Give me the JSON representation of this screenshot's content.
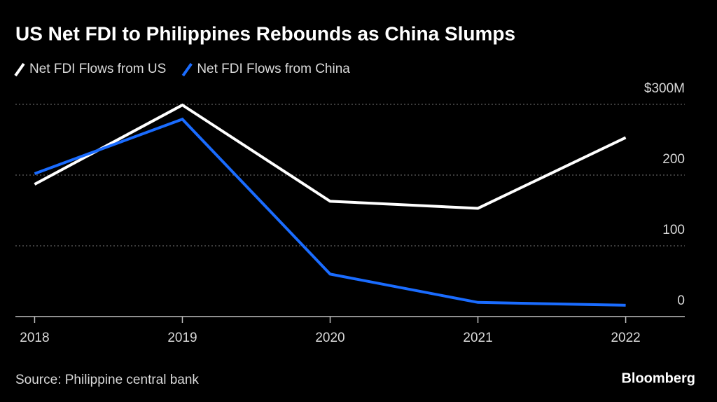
{
  "chart_data": {
    "type": "line",
    "title": "US Net FDI to Philippines Rebounds as China Slumps",
    "x": [
      2018,
      2019,
      2020,
      2021,
      2022
    ],
    "xlim": [
      2017.87,
      2022.4
    ],
    "xticks": [
      2018,
      2019,
      2020,
      2021,
      2022
    ],
    "ylim": [
      0,
      300
    ],
    "yticks": [
      0,
      100,
      200,
      {
        "value": 300,
        "label": "$300M"
      }
    ],
    "grid": true,
    "series": [
      {
        "name": "Net FDI Flows from US",
        "color": "#ffffff",
        "values": [
          187,
          299,
          163,
          153,
          253
        ]
      },
      {
        "name": "Net FDI Flows from China",
        "color": "#1a6cff",
        "values": [
          202,
          279,
          60,
          20,
          16
        ]
      }
    ],
    "source": "Source: Philippine central bank",
    "credit": "Bloomberg"
  }
}
